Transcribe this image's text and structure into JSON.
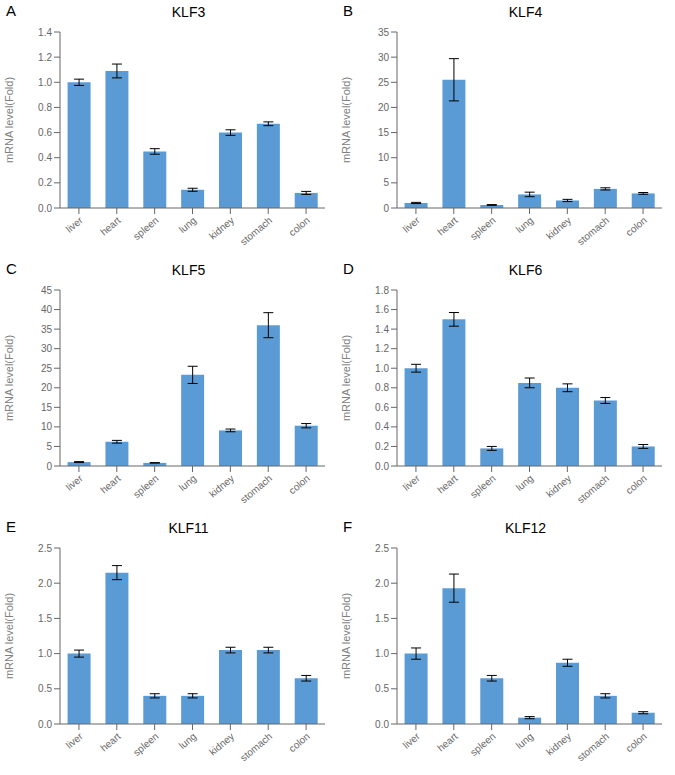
{
  "chart_data": [
    {
      "type": "bar",
      "title": "KLF3",
      "annotation": "A",
      "ylabel": "mRNA level(Fold)",
      "categories": [
        "liver",
        "heart",
        "spleen",
        "lung",
        "kidney",
        "stomach",
        "colon"
      ],
      "values": [
        1.0,
        1.09,
        0.45,
        0.145,
        0.6,
        0.67,
        0.12
      ],
      "errors": [
        0.025,
        0.055,
        0.022,
        0.012,
        0.022,
        0.015,
        0.012
      ],
      "color": "#5b9bd5",
      "ylim": [
        0,
        1.4
      ],
      "yticks": [
        {
          "value": 0,
          "label": "0.0"
        },
        0.2,
        0.4,
        0.6,
        0.8,
        {
          "value": 1.0,
          "label": "1.0"
        },
        1.2,
        1.4
      ],
      "grid": false
    },
    {
      "type": "bar",
      "title": "KLF4",
      "annotation": "B",
      "ylabel": "mRNA level(Fold)",
      "categories": [
        "liver",
        "heart",
        "spleen",
        "lung",
        "kidney",
        "stomach",
        "colon"
      ],
      "values": [
        1.0,
        25.5,
        0.6,
        2.7,
        1.5,
        3.8,
        2.9
      ],
      "errors": [
        0.12,
        4.2,
        0.08,
        0.45,
        0.22,
        0.22,
        0.18
      ],
      "color": "#5b9bd5",
      "ylim": [
        0,
        35
      ],
      "yticks": [
        0,
        5,
        10,
        15,
        20,
        25,
        30,
        35
      ],
      "grid": false
    },
    {
      "type": "bar",
      "title": "KLF5",
      "annotation": "C",
      "ylabel": "mRNA level(Fold)",
      "categories": [
        "liver",
        "heart",
        "spleen",
        "lung",
        "kidney",
        "stomach",
        "colon"
      ],
      "values": [
        1.0,
        6.2,
        0.8,
        23.3,
        9.1,
        36.0,
        10.3
      ],
      "errors": [
        0.12,
        0.35,
        0.06,
        2.2,
        0.35,
        3.2,
        0.55
      ],
      "color": "#5b9bd5",
      "ylim": [
        0,
        45
      ],
      "yticks": [
        0,
        5,
        10,
        15,
        20,
        25,
        30,
        35,
        40,
        45
      ],
      "grid": false
    },
    {
      "type": "bar",
      "title": "KLF6",
      "annotation": "D",
      "ylabel": "mRNA level(Fold)",
      "categories": [
        "liver",
        "heart",
        "spleen",
        "lung",
        "kidney",
        "stomach",
        "colon"
      ],
      "values": [
        1.0,
        1.5,
        0.18,
        0.85,
        0.8,
        0.67,
        0.2
      ],
      "errors": [
        0.04,
        0.07,
        0.02,
        0.05,
        0.04,
        0.03,
        0.02
      ],
      "color": "#5b9bd5",
      "ylim": [
        0,
        1.8
      ],
      "yticks": [
        {
          "value": 0,
          "label": "0.0"
        },
        0.2,
        0.4,
        0.6,
        0.8,
        {
          "value": 1.0,
          "label": "1.0"
        },
        1.2,
        1.4,
        1.6,
        1.8
      ],
      "grid": false
    },
    {
      "type": "bar",
      "title": "KLF11",
      "annotation": "E",
      "ylabel": "mRNA level(Fold)",
      "categories": [
        "liver",
        "heart",
        "spleen",
        "lung",
        "kidney",
        "stomach",
        "colon"
      ],
      "values": [
        1.0,
        2.15,
        0.4,
        0.4,
        1.05,
        1.05,
        0.65
      ],
      "errors": [
        0.05,
        0.1,
        0.03,
        0.03,
        0.04,
        0.04,
        0.04
      ],
      "color": "#5b9bd5",
      "ylim": [
        0,
        2.5
      ],
      "yticks": [
        {
          "value": 0,
          "label": "0.0"
        },
        0.5,
        {
          "value": 1.0,
          "label": "1.0"
        },
        1.5,
        {
          "value": 2.0,
          "label": "2.0"
        },
        2.5
      ],
      "grid": false
    },
    {
      "type": "bar",
      "title": "KLF12",
      "annotation": "F",
      "ylabel": "mRNA level(Fold)",
      "categories": [
        "liver",
        "heart",
        "spleen",
        "lung",
        "kidney",
        "stomach",
        "colon"
      ],
      "values": [
        1.0,
        1.93,
        0.65,
        0.09,
        0.87,
        0.4,
        0.16
      ],
      "errors": [
        0.08,
        0.2,
        0.04,
        0.015,
        0.05,
        0.03,
        0.015
      ],
      "color": "#5b9bd5",
      "ylim": [
        0,
        2.5
      ],
      "yticks": [
        {
          "value": 0,
          "label": "0.0"
        },
        0.5,
        {
          "value": 1.0,
          "label": "1.0"
        },
        1.5,
        {
          "value": 2.0,
          "label": "2.0"
        },
        2.5
      ],
      "grid": false
    }
  ]
}
